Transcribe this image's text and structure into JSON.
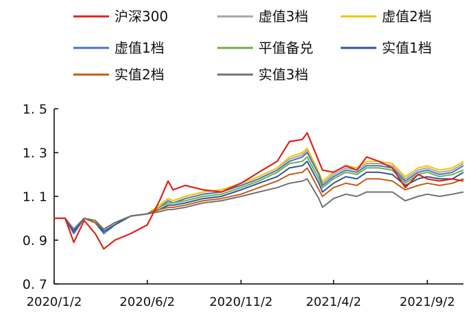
{
  "chart_data": {
    "type": "line",
    "title": "",
    "xlabel": "",
    "ylabel": "",
    "ylim": [
      0.7,
      1.5
    ],
    "yticks": [
      {
        "value": 0.7,
        "label": "0. 7"
      },
      {
        "value": 0.9,
        "label": "0. 9"
      },
      {
        "value": 1.1,
        "label": "1. 1"
      },
      {
        "value": 1.3,
        "label": "1. 3"
      },
      {
        "value": 1.5,
        "label": "1. 5"
      }
    ],
    "x_range": [
      "2020-01-02",
      "2021-10-31"
    ],
    "xticks": [
      {
        "date": "2020-01-02",
        "label": "2020/1/2"
      },
      {
        "date": "2020-06-02",
        "label": "2020/6/2"
      },
      {
        "date": "2020-11-02",
        "label": "2020/11/2"
      },
      {
        "date": "2021-04-02",
        "label": "2021/4/2"
      },
      {
        "date": "2021-09-02",
        "label": "2021/9/2"
      }
    ],
    "x": [
      "2020-01-02",
      "2020-01-20",
      "2020-02-03",
      "2020-02-20",
      "2020-03-09",
      "2020-03-23",
      "2020-04-10",
      "2020-05-06",
      "2020-06-02",
      "2020-06-22",
      "2020-07-06",
      "2020-07-14",
      "2020-08-03",
      "2020-09-01",
      "2020-10-01",
      "2020-11-02",
      "2020-12-01",
      "2020-12-31",
      "2021-01-20",
      "2021-02-10",
      "2021-02-18",
      "2021-03-09",
      "2021-03-15",
      "2021-04-02",
      "2021-04-22",
      "2021-05-10",
      "2021-05-26",
      "2021-06-15",
      "2021-07-07",
      "2021-07-28",
      "2021-08-18",
      "2021-09-02",
      "2021-09-22",
      "2021-10-13",
      "2021-10-31"
    ],
    "series": [
      {
        "name": "沪深300",
        "color": "#e0201b",
        "values": [
          1.0,
          1.0,
          0.89,
          0.99,
          0.93,
          0.86,
          0.9,
          0.93,
          0.97,
          1.08,
          1.17,
          1.13,
          1.15,
          1.13,
          1.12,
          1.16,
          1.21,
          1.26,
          1.35,
          1.36,
          1.39,
          1.26,
          1.22,
          1.21,
          1.24,
          1.22,
          1.28,
          1.26,
          1.23,
          1.14,
          1.2,
          1.18,
          1.17,
          1.18,
          1.17
        ]
      },
      {
        "name": "虚值3档",
        "color": "#a6a6a6",
        "values": [
          1.0,
          1.0,
          0.93,
          1.0,
          0.98,
          0.93,
          0.97,
          1.01,
          1.02,
          1.06,
          1.09,
          1.08,
          1.1,
          1.12,
          1.13,
          1.16,
          1.19,
          1.23,
          1.27,
          1.29,
          1.31,
          1.2,
          1.16,
          1.2,
          1.23,
          1.22,
          1.25,
          1.25,
          1.24,
          1.18,
          1.22,
          1.23,
          1.21,
          1.22,
          1.25
        ]
      },
      {
        "name": "虚值2档",
        "color": "#f5c400",
        "values": [
          1.0,
          1.0,
          0.93,
          1.0,
          0.98,
          0.93,
          0.97,
          1.01,
          1.02,
          1.06,
          1.09,
          1.08,
          1.1,
          1.12,
          1.13,
          1.16,
          1.19,
          1.23,
          1.28,
          1.3,
          1.32,
          1.21,
          1.17,
          1.21,
          1.24,
          1.23,
          1.26,
          1.26,
          1.25,
          1.19,
          1.23,
          1.24,
          1.22,
          1.23,
          1.26
        ]
      },
      {
        "name": "虚值1档",
        "color": "#4472c4",
        "values": [
          1.0,
          1.0,
          0.93,
          1.0,
          0.98,
          0.93,
          0.97,
          1.01,
          1.02,
          1.05,
          1.08,
          1.07,
          1.09,
          1.11,
          1.12,
          1.15,
          1.18,
          1.22,
          1.26,
          1.28,
          1.3,
          1.2,
          1.15,
          1.19,
          1.22,
          1.21,
          1.24,
          1.24,
          1.23,
          1.17,
          1.21,
          1.22,
          1.2,
          1.21,
          1.24
        ]
      },
      {
        "name": "平值备兑",
        "color": "#70ad47",
        "values": [
          1.0,
          1.0,
          0.94,
          1.0,
          0.98,
          0.94,
          0.97,
          1.01,
          1.02,
          1.05,
          1.07,
          1.07,
          1.08,
          1.1,
          1.11,
          1.14,
          1.17,
          1.21,
          1.25,
          1.26,
          1.28,
          1.18,
          1.14,
          1.18,
          1.21,
          1.2,
          1.23,
          1.23,
          1.22,
          1.16,
          1.2,
          1.21,
          1.19,
          1.2,
          1.22
        ]
      },
      {
        "name": "实值1档",
        "color": "#2e5597",
        "values": [
          1.0,
          1.0,
          0.94,
          1.0,
          0.98,
          0.94,
          0.97,
          1.01,
          1.02,
          1.04,
          1.06,
          1.06,
          1.07,
          1.09,
          1.1,
          1.13,
          1.16,
          1.19,
          1.23,
          1.24,
          1.26,
          1.16,
          1.12,
          1.16,
          1.19,
          1.18,
          1.21,
          1.21,
          1.2,
          1.15,
          1.18,
          1.19,
          1.18,
          1.18,
          1.21
        ]
      },
      {
        "name": "实值2档",
        "color": "#c55a11",
        "values": [
          1.0,
          1.0,
          0.95,
          1.0,
          0.98,
          0.95,
          0.98,
          1.01,
          1.02,
          1.04,
          1.05,
          1.05,
          1.06,
          1.08,
          1.09,
          1.11,
          1.14,
          1.17,
          1.2,
          1.21,
          1.23,
          1.13,
          1.1,
          1.14,
          1.16,
          1.15,
          1.18,
          1.18,
          1.17,
          1.13,
          1.15,
          1.16,
          1.15,
          1.16,
          1.18
        ]
      },
      {
        "name": "实值3档",
        "color": "#707070",
        "values": [
          1.0,
          1.0,
          0.95,
          1.0,
          0.99,
          0.95,
          0.98,
          1.01,
          1.02,
          1.03,
          1.04,
          1.04,
          1.05,
          1.07,
          1.08,
          1.1,
          1.12,
          1.14,
          1.16,
          1.17,
          1.18,
          1.09,
          1.05,
          1.09,
          1.11,
          1.1,
          1.12,
          1.12,
          1.12,
          1.08,
          1.1,
          1.11,
          1.1,
          1.11,
          1.12
        ]
      }
    ],
    "legend_position": "top",
    "grid": false
  }
}
